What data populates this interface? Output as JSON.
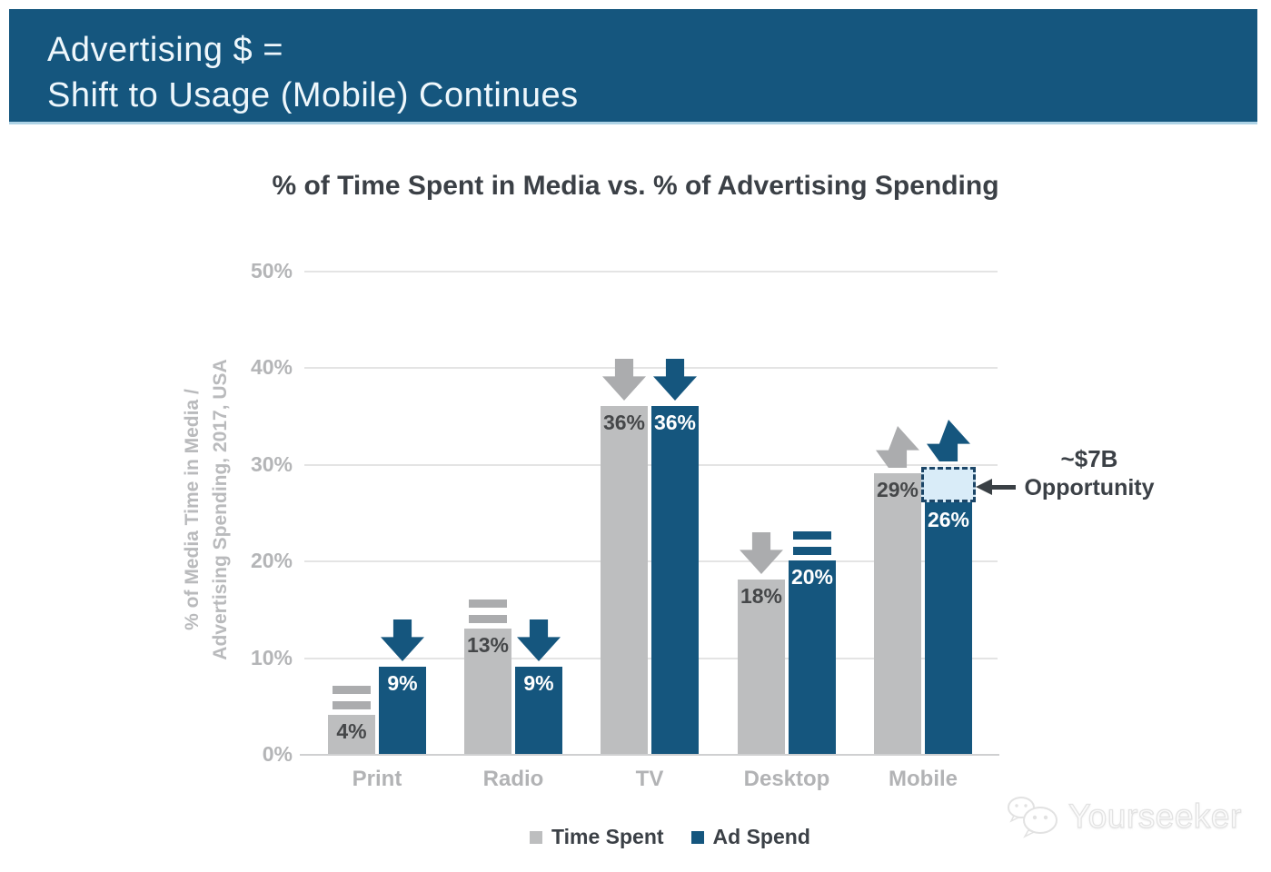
{
  "banner": {
    "line1": "Advertising $ =",
    "line2": "Shift to Usage (Mobile) Continues"
  },
  "chart_data": {
    "type": "bar",
    "title": "% of Time Spent in Media vs. % of Advertising Spending",
    "ylabel_line1": "% of Media Time in Media /",
    "ylabel_line2": "Advertising Spending, 2017, USA",
    "categories": [
      "Print",
      "Radio",
      "TV",
      "Desktop",
      "Mobile"
    ],
    "series": [
      {
        "name": "Time Spent",
        "color_key": "gray",
        "values": [
          4,
          13,
          36,
          18,
          29
        ],
        "trends": [
          "equal",
          "equal",
          "down",
          "down",
          "up"
        ]
      },
      {
        "name": "Ad Spend",
        "color_key": "blue",
        "values": [
          9,
          9,
          36,
          20,
          26
        ],
        "trends": [
          "down",
          "down",
          "down",
          "equal",
          "up"
        ]
      }
    ],
    "value_suffix": "%",
    "y_ticks": [
      "0%",
      "10%",
      "20%",
      "30%",
      "40%",
      "50%"
    ],
    "ylim": [
      0,
      50
    ],
    "grid": true,
    "legend_position": "bottom",
    "annotation": {
      "line1": "~$7B",
      "line2": "Opportunity",
      "target_category": "Mobile",
      "target_series": "Ad Spend",
      "box_from_pct": 26,
      "box_to_pct": 29.7
    }
  },
  "colors": {
    "banner_blue": "#15567E",
    "bar_blue": "#15567E",
    "bar_gray": "#bdbebf",
    "indicator_gray": "#abacae",
    "opportunity_fill": "#d9ecf8",
    "opportunity_border": "#1c4668"
  },
  "watermark": {
    "text": "Yourseeker"
  }
}
